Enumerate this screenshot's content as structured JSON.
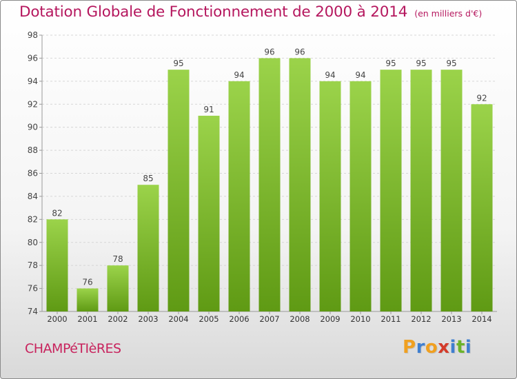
{
  "chart_data": {
    "type": "bar",
    "title": "Dotation Globale de Fonctionnement de 2000 à 2014",
    "subtitle": "(en milliers d'€)",
    "categories": [
      "2000",
      "2001",
      "2002",
      "2003",
      "2004",
      "2005",
      "2006",
      "2007",
      "2008",
      "2009",
      "2010",
      "2011",
      "2012",
      "2013",
      "2014"
    ],
    "values": [
      82,
      76,
      78,
      85,
      95,
      91,
      94,
      96,
      96,
      94,
      94,
      95,
      95,
      95,
      92
    ],
    "ylim": [
      74,
      98
    ],
    "yticks": [
      74,
      76,
      78,
      80,
      82,
      84,
      86,
      88,
      90,
      92,
      94,
      96,
      98
    ],
    "xlabel": "",
    "ylabel": "",
    "grid": true,
    "bar_color": "#7dbb2c"
  },
  "footer": {
    "commune": "CHAMPéTIèRES"
  },
  "brand": {
    "letters": [
      "P",
      "r",
      "o",
      "x",
      "i",
      "t",
      "i"
    ],
    "colors": [
      "#f0a020",
      "#3f7fd0",
      "#f0a020",
      "#d43b2a",
      "#3f7fd0",
      "#6bb42a",
      "#3f7fd0"
    ]
  }
}
